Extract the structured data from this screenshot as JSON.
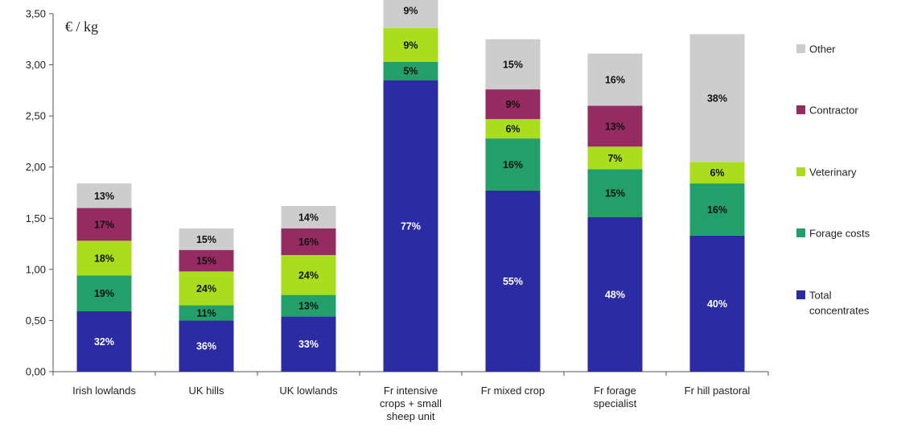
{
  "chart_data": {
    "type": "bar",
    "stacked": true,
    "unit_label": "€ / kg",
    "categories": [
      [
        "Irish lowlands"
      ],
      [
        "UK hills"
      ],
      [
        "UK lowlands"
      ],
      [
        "Fr intensive",
        "crops + small",
        "sheep unit"
      ],
      [
        "Fr mixed crop"
      ],
      [
        "Fr forage",
        "specialist"
      ],
      [
        "Fr hill pastoral"
      ]
    ],
    "ylim": [
      0,
      3.5
    ],
    "yticks": [
      "0,00",
      "0,50",
      "1,00",
      "1,50",
      "2,00",
      "2,50",
      "3,00",
      "3,50"
    ],
    "grid": false,
    "legend_position": "right",
    "series": [
      {
        "name": "Total concentrates",
        "legend": [
          "Total",
          "concentrates"
        ],
        "color": "#2b2ba3",
        "label_color": "#ffffff",
        "values": [
          0.59,
          0.5,
          0.54,
          2.85,
          1.77,
          1.51,
          1.33
        ],
        "labels": [
          "32%",
          "36%",
          "33%",
          "77%",
          "55%",
          "48%",
          "40%"
        ]
      },
      {
        "name": "Forage costs",
        "legend": [
          "Forage costs"
        ],
        "color": "#23a06a",
        "label_color": "#111111",
        "values": [
          0.35,
          0.15,
          0.21,
          0.18,
          0.51,
          0.47,
          0.51
        ],
        "labels": [
          "19%",
          "11%",
          "13%",
          "5%",
          "16%",
          "15%",
          "16%"
        ]
      },
      {
        "name": "Veterinary",
        "legend": [
          "Veterinary"
        ],
        "color": "#aadd1c",
        "label_color": "#111111",
        "values": [
          0.34,
          0.33,
          0.39,
          0.33,
          0.19,
          0.22,
          0.21
        ],
        "labels": [
          "18%",
          "24%",
          "24%",
          "9%",
          "6%",
          "7%",
          "6%"
        ]
      },
      {
        "name": "Contractor",
        "legend": [
          "Contractor"
        ],
        "color": "#962b61",
        "label_color": "#111111",
        "values": [
          0.32,
          0.21,
          0.26,
          0.0,
          0.29,
          0.4,
          0.0
        ],
        "labels": [
          "17%",
          "15%",
          "16%",
          "",
          "9%",
          "13%",
          ""
        ]
      },
      {
        "name": "Other",
        "legend": [
          "Other"
        ],
        "color": "#cdcdcd",
        "label_color": "#111111",
        "values": [
          0.24,
          0.21,
          0.22,
          0.34,
          0.49,
          0.51,
          1.25
        ],
        "labels": [
          "13%",
          "15%",
          "14%",
          "9%",
          "15%",
          "16%",
          "38%"
        ]
      }
    ]
  }
}
